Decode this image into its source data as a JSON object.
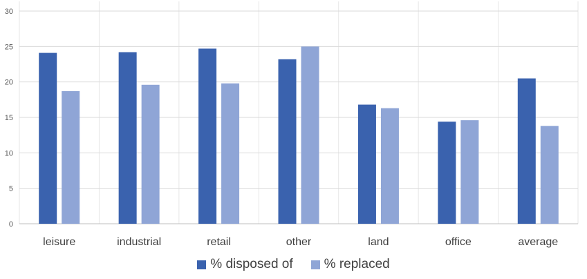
{
  "chart_data": {
    "type": "bar",
    "title": "",
    "xlabel": "",
    "ylabel": "",
    "categories": [
      "leisure",
      "industrial",
      "retail",
      "other",
      "land",
      "office",
      "average"
    ],
    "series": [
      {
        "name": "% disposed of",
        "color": "#3a62ae",
        "values": [
          24.1,
          24.2,
          24.7,
          23.2,
          16.8,
          14.4,
          20.5
        ]
      },
      {
        "name": "% replaced",
        "color": "#8fa5d6",
        "values": [
          18.7,
          19.6,
          19.8,
          25.0,
          16.3,
          14.6,
          13.8
        ]
      }
    ],
    "ylim": [
      0,
      30
    ],
    "yticks": [
      0,
      5,
      10,
      15,
      20,
      25,
      30
    ],
    "grid": true,
    "legend_position": "bottom"
  }
}
